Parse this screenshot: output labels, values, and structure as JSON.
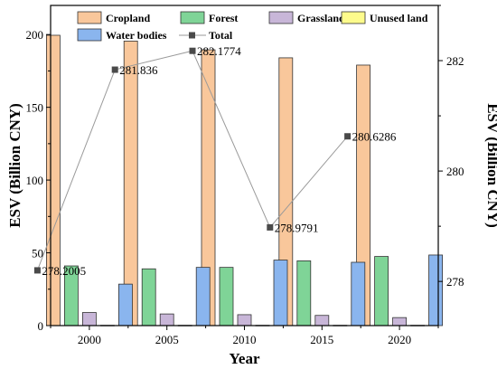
{
  "chart_data": {
    "type": "bar",
    "categories": [
      "2000",
      "2005",
      "2010",
      "2015",
      "2020"
    ],
    "xlabel": "Year",
    "ylabel": "ESV (Billion CNY)",
    "ylabel_right": "ESV (Billion CNY)",
    "ylim": [
      0,
      220
    ],
    "ylim_right": [
      277.2,
      283
    ],
    "yticks": [
      0,
      50,
      100,
      150,
      200
    ],
    "yticks_right": [
      278,
      280,
      282
    ],
    "series": [
      {
        "name": "Cropland",
        "color": "#f9c79b",
        "values": [
          199.5,
          195.5,
          189.5,
          184,
          179
        ]
      },
      {
        "name": "Forest",
        "color": "#7fd497",
        "values": [
          41,
          39,
          40,
          44.5,
          47.5
        ]
      },
      {
        "name": "Grassland",
        "color": "#c8b6d8",
        "values": [
          9,
          8,
          7.5,
          7,
          5.5
        ]
      },
      {
        "name": "Unused land",
        "color": "#fdfb8c",
        "values": [
          0.2,
          0.2,
          0.2,
          0.2,
          0.2
        ]
      },
      {
        "name": "Water bodies",
        "color": "#8ab5ee",
        "values": [
          28.5,
          40,
          45,
          43.5,
          48.5
        ]
      }
    ],
    "line_series": {
      "name": "Total",
      "axis": "right",
      "values": [
        278.2005,
        281.836,
        282.1774,
        278.9791,
        280.6286
      ],
      "labels": [
        "278.2005",
        "281.836",
        "282.1774",
        "278.9791",
        "280.6286"
      ]
    },
    "legend_position": "top"
  }
}
